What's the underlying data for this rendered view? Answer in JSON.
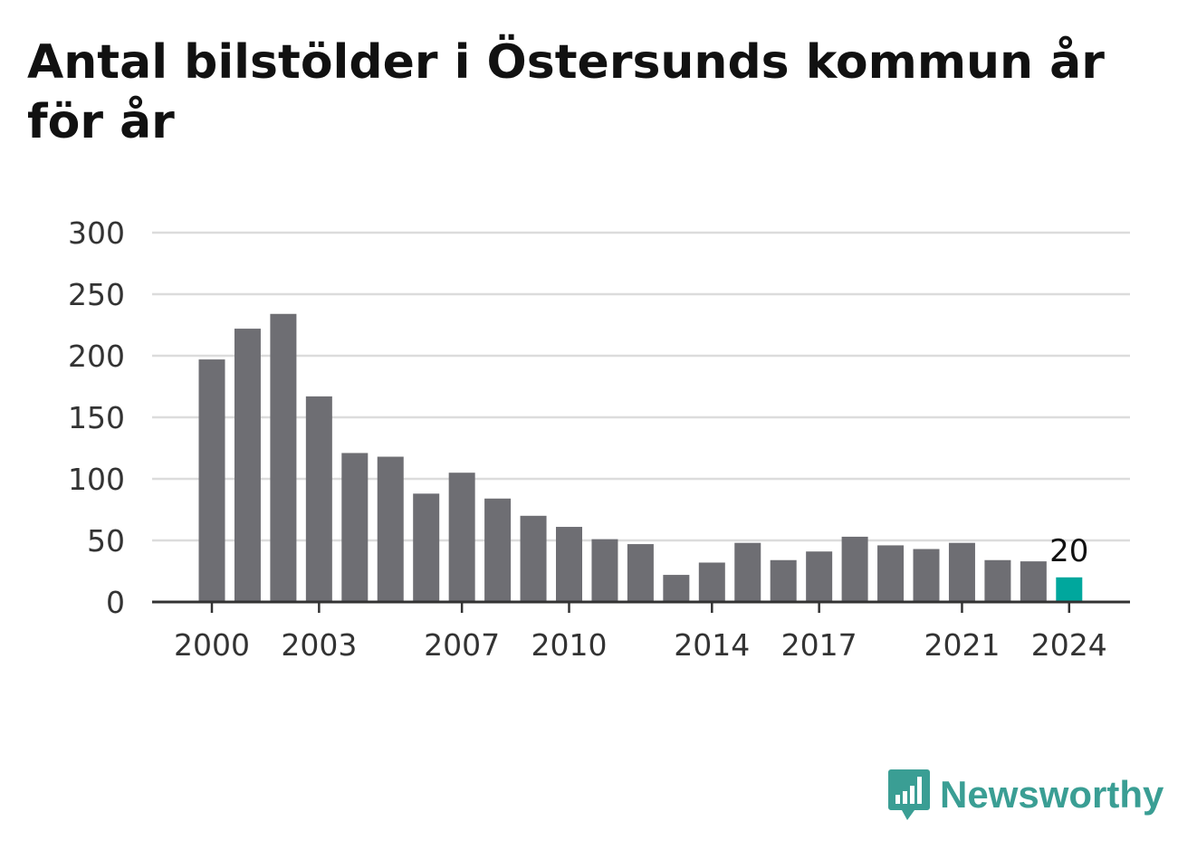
{
  "title": "Antal bilstölder i Östersunds kommun år för år",
  "brand": {
    "name": "Newsworthy",
    "icon": "bar-chart-speech-bubble-icon",
    "color": "#3a9e94"
  },
  "chart_data": {
    "type": "bar",
    "title": "Antal bilstölder i Östersunds kommun år för år",
    "xlabel": "",
    "ylabel": "",
    "categories": [
      2000,
      2001,
      2002,
      2003,
      2004,
      2005,
      2006,
      2007,
      2008,
      2009,
      2010,
      2011,
      2012,
      2013,
      2014,
      2015,
      2016,
      2017,
      2018,
      2019,
      2020,
      2021,
      2022,
      2023,
      2024
    ],
    "values": [
      197,
      222,
      234,
      167,
      121,
      118,
      88,
      105,
      84,
      70,
      61,
      51,
      47,
      22,
      32,
      48,
      34,
      41,
      53,
      46,
      43,
      48,
      34,
      33,
      20
    ],
    "ylim": [
      0,
      300
    ],
    "yticks": [
      0,
      50,
      100,
      150,
      200,
      250,
      300
    ],
    "xtick_labels": [
      2000,
      2003,
      2007,
      2010,
      2014,
      2017,
      2021,
      2024
    ],
    "grid": true,
    "bar_color": "#6e6e73",
    "highlight_color": "#00a79d",
    "highlight_category": 2024,
    "data_labels": [
      {
        "category": 2024,
        "text": "20"
      }
    ]
  }
}
